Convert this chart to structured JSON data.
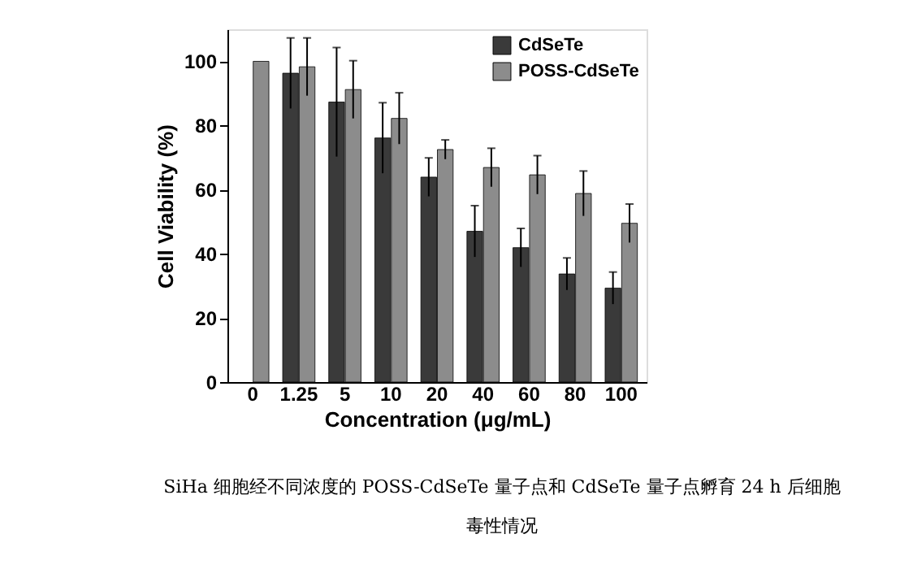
{
  "chart_data": {
    "type": "bar",
    "xlabel": "Concentration (μg/mL)",
    "ylabel": "Cell Viability (%)",
    "categories": [
      "0",
      "1.25",
      "5",
      "10",
      "20",
      "40",
      "60",
      "80",
      "100"
    ],
    "series": [
      {
        "name": "CdSeTe",
        "color": "#3a3a3a",
        "values": [
          null,
          96.3,
          87.3,
          76.1,
          63.9,
          47,
          41.9,
          33.7,
          29.3
        ],
        "errors": [
          null,
          11,
          17,
          11,
          6,
          8,
          6,
          5,
          5
        ]
      },
      {
        "name": "POSS-CdSeTe",
        "color": "#8c8c8c",
        "values": [
          100,
          98.3,
          91.2,
          82.2,
          72.5,
          66.9,
          64.6,
          58.8,
          49.5
        ],
        "errors": [
          null,
          9,
          9,
          8,
          3,
          6,
          6,
          7,
          6
        ]
      }
    ],
    "ylim": [
      0,
      110
    ],
    "yticks": [
      0,
      20,
      40,
      60,
      80,
      100
    ],
    "grid": false,
    "legend": "top right",
    "annotations": [
      "SiHa 细胞经不同浓度的 POSS-CdSeTe 量子点和 CdSeTe 量子点孵育 24 h 后细胞",
      "毒性情况"
    ]
  }
}
